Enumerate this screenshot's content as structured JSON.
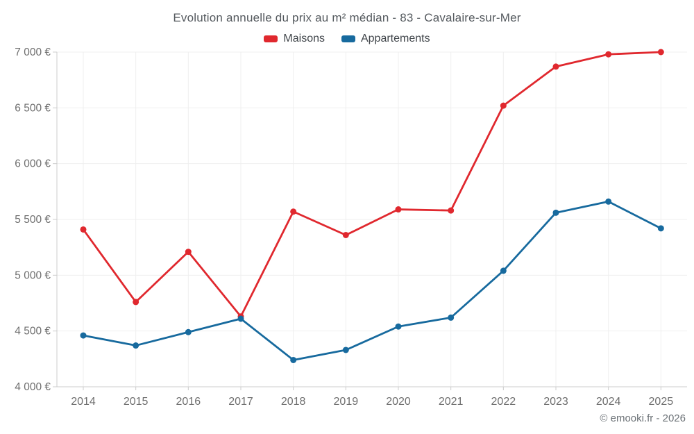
{
  "title": "Evolution annuelle du prix au m² médian - 83 - Cavalaire-sur-Mer",
  "footer": "© emooki.fr - 2026",
  "legend": [
    {
      "label": "Maisons",
      "color": "#e0282e"
    },
    {
      "label": "Appartements",
      "color": "#176a9e"
    }
  ],
  "chart_data": {
    "type": "line",
    "title": "Evolution annuelle du prix au m² médian - 83 - Cavalaire-sur-Mer",
    "categories": [
      "2014",
      "2015",
      "2016",
      "2017",
      "2018",
      "2019",
      "2020",
      "2021",
      "2022",
      "2023",
      "2024",
      "2025"
    ],
    "series": [
      {
        "name": "Maisons",
        "color": "#e0282e",
        "values": [
          5410,
          4760,
          5210,
          4630,
          5570,
          5360,
          5590,
          5580,
          6520,
          6870,
          6980,
          7000
        ]
      },
      {
        "name": "Appartements",
        "color": "#176a9e",
        "values": [
          4460,
          4370,
          4490,
          4610,
          4240,
          4330,
          4540,
          4620,
          5040,
          5560,
          5660,
          5420
        ]
      }
    ],
    "xlabel": "",
    "ylabel": "",
    "ylim": [
      4000,
      7000
    ],
    "ytick_step": 500,
    "y_tick_labels": [
      "4 000 €",
      "4 500 €",
      "5 000 €",
      "5 500 €",
      "6 000 €",
      "6 500 €",
      "7 000 €"
    ],
    "grid": true,
    "legend_position": "top"
  },
  "colors": {
    "background": "#ffffff",
    "grid": "#efefef",
    "axis": "#cccccc",
    "tick_text": "#6e6e6e",
    "title_text": "#54595e",
    "legend_text": "#40454a",
    "footer_text": "#6b7176"
  }
}
